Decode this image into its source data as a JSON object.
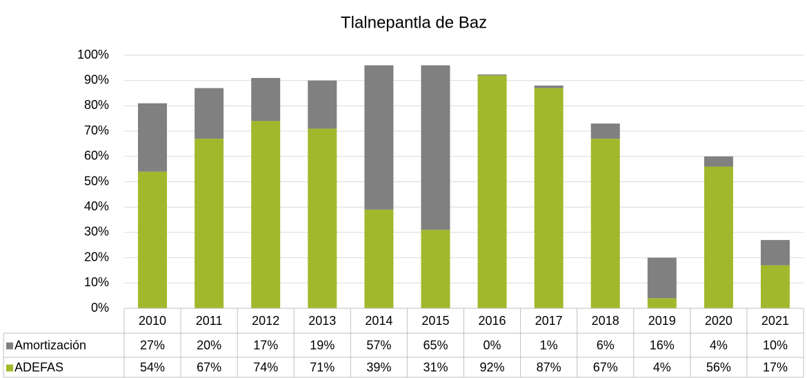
{
  "chart_data": {
    "type": "bar",
    "stacked": true,
    "title": "Tlalnepantla  de Baz",
    "categories": [
      "2010",
      "2011",
      "2012",
      "2013",
      "2014",
      "2015",
      "2016",
      "2017",
      "2018",
      "2019",
      "2020",
      "2021"
    ],
    "series": [
      {
        "name": "ADEFAS",
        "color": "#a2b82c",
        "values": [
          54,
          67,
          74,
          71,
          39,
          31,
          92,
          87,
          67,
          4,
          56,
          17
        ],
        "value_labels": [
          "54%",
          "67%",
          "74%",
          "71%",
          "39%",
          "31%",
          "92%",
          "87%",
          "67%",
          "4%",
          "56%",
          "17%"
        ]
      },
      {
        "name": "Amortización",
        "color": "#808080",
        "values": [
          27,
          20,
          17,
          19,
          57,
          65,
          0.4,
          1,
          6,
          16,
          4,
          10
        ],
        "value_labels": [
          "27%",
          "20%",
          "17%",
          "19%",
          "57%",
          "65%",
          "0%",
          "1%",
          "6%",
          "16%",
          "4%",
          "10%"
        ]
      }
    ],
    "ylim": [
      0,
      100
    ],
    "yticks": [
      {
        "value": 0,
        "label": "0%"
      },
      {
        "value": 10,
        "label": "10%"
      },
      {
        "value": 20,
        "label": "20%"
      },
      {
        "value": 30,
        "label": "30%"
      },
      {
        "value": 40,
        "label": "40%"
      },
      {
        "value": 50,
        "label": "50%"
      },
      {
        "value": 60,
        "label": "60%"
      },
      {
        "value": 70,
        "label": "70%"
      },
      {
        "value": 80,
        "label": "80%"
      },
      {
        "value": 90,
        "label": "90%"
      },
      {
        "value": 100,
        "label": "100%"
      }
    ],
    "grid": true
  }
}
